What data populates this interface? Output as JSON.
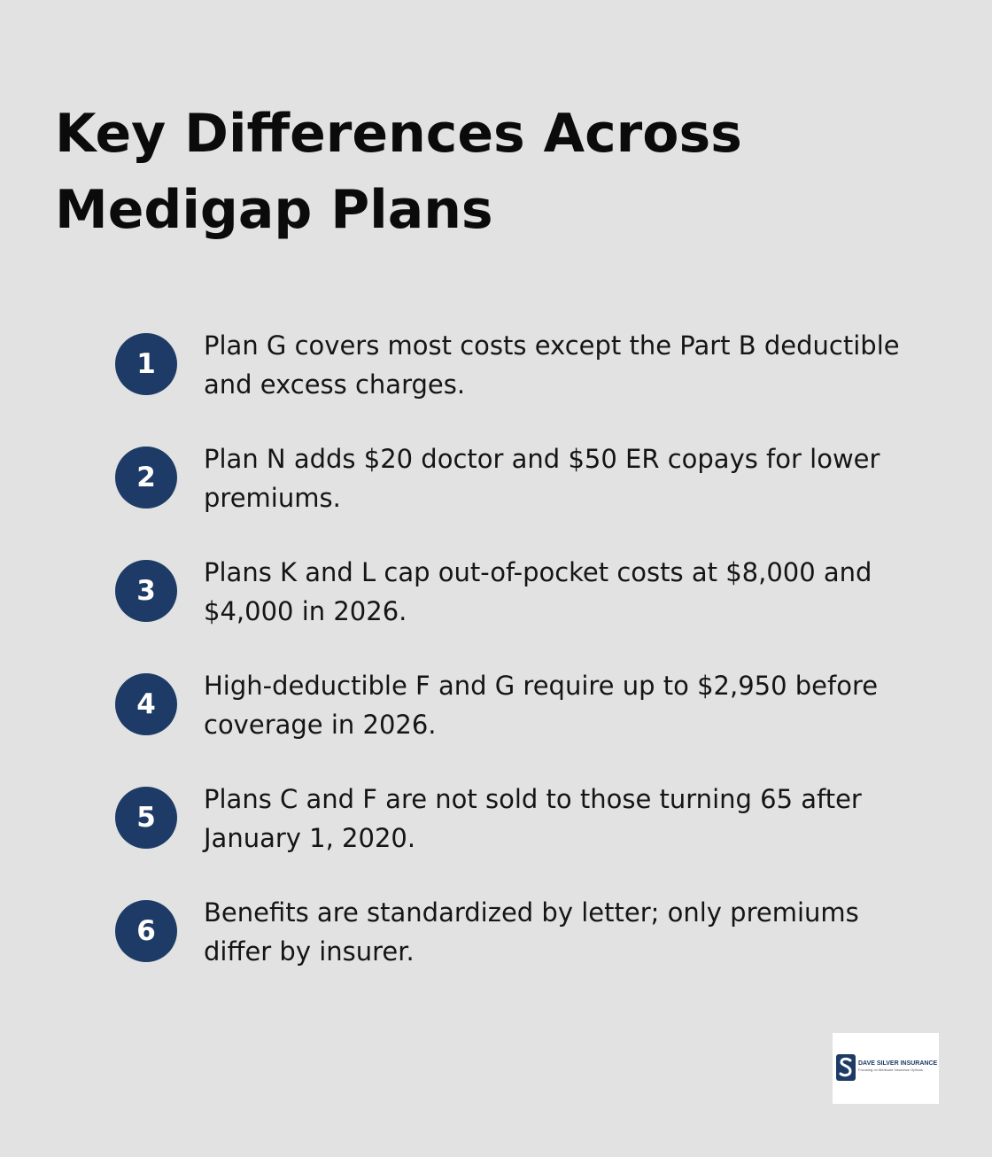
{
  "title": "Key Differences Across Medigap Plans",
  "accent_color": "#1d3b66",
  "background_color": "#e1e2e1",
  "items": [
    {
      "number": "1",
      "text": "Plan G covers most costs except the Part B deductible and excess charges."
    },
    {
      "number": "2",
      "text": "Plan N adds $20 doctor and $50 ER copays for lower premiums."
    },
    {
      "number": "3",
      "text": "Plans K and L cap out-of-pocket costs at $8,000 and $4,000 in 2026."
    },
    {
      "number": "4",
      "text": "High-deductible F and G require up to $2,950 before coverage in 2026."
    },
    {
      "number": "5",
      "text": "Plans C and F are not sold to those turning 65 after January 1, 2020."
    },
    {
      "number": "6",
      "text": "Benefits are standardized by letter; only premiums differ by insurer."
    }
  ],
  "logo": {
    "name": "DAVE SILVER INSURANCE",
    "tagline": "Focusing on Medicare Insurance Options",
    "icon": "s-monogram-icon"
  }
}
